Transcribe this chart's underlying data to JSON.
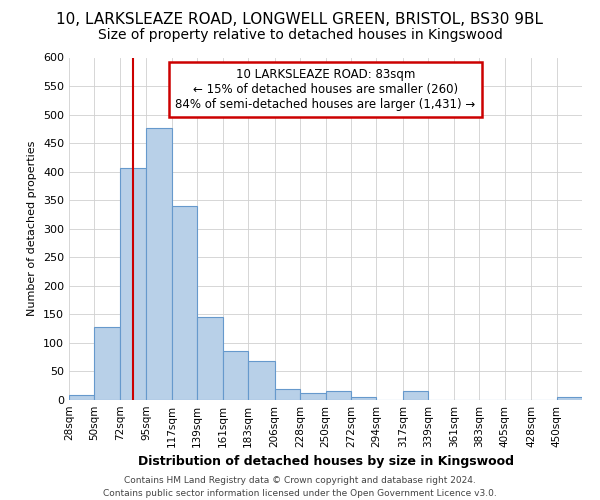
{
  "title_line1": "10, LARKSLEAZE ROAD, LONGWELL GREEN, BRISTOL, BS30 9BL",
  "title_line2": "Size of property relative to detached houses in Kingswood",
  "xlabel": "Distribution of detached houses by size in Kingswood",
  "ylabel": "Number of detached properties",
  "footnote1": "Contains HM Land Registry data © Crown copyright and database right 2024.",
  "footnote2": "Contains public sector information licensed under the Open Government Licence v3.0.",
  "annotation_line1": "10 LARKSLEAZE ROAD: 83sqm",
  "annotation_line2": "← 15% of detached houses are smaller (260)",
  "annotation_line3": "84% of semi-detached houses are larger (1,431) →",
  "bin_edges": [
    28,
    50,
    72,
    95,
    117,
    139,
    161,
    183,
    206,
    228,
    250,
    272,
    294,
    317,
    339,
    361,
    383,
    405,
    428,
    450,
    472
  ],
  "bar_heights": [
    8,
    128,
    406,
    476,
    340,
    145,
    85,
    68,
    20,
    12,
    15,
    5,
    0,
    15,
    0,
    0,
    0,
    0,
    0,
    5
  ],
  "bar_color": "#b8d0e8",
  "bar_edge_color": "#6699cc",
  "vline_x": 83,
  "vline_color": "#cc0000",
  "annotation_box_color": "#cc0000",
  "ylim": [
    0,
    600
  ],
  "ytick_step": 50,
  "background_color": "#ffffff",
  "grid_color": "#d0d0d0",
  "title1_fontsize": 11,
  "title2_fontsize": 10,
  "xlabel_fontsize": 9,
  "ylabel_fontsize": 8,
  "xtick_fontsize": 7.5,
  "ytick_fontsize": 8,
  "footnote_fontsize": 6.5,
  "annotation_fontsize": 8.5
}
